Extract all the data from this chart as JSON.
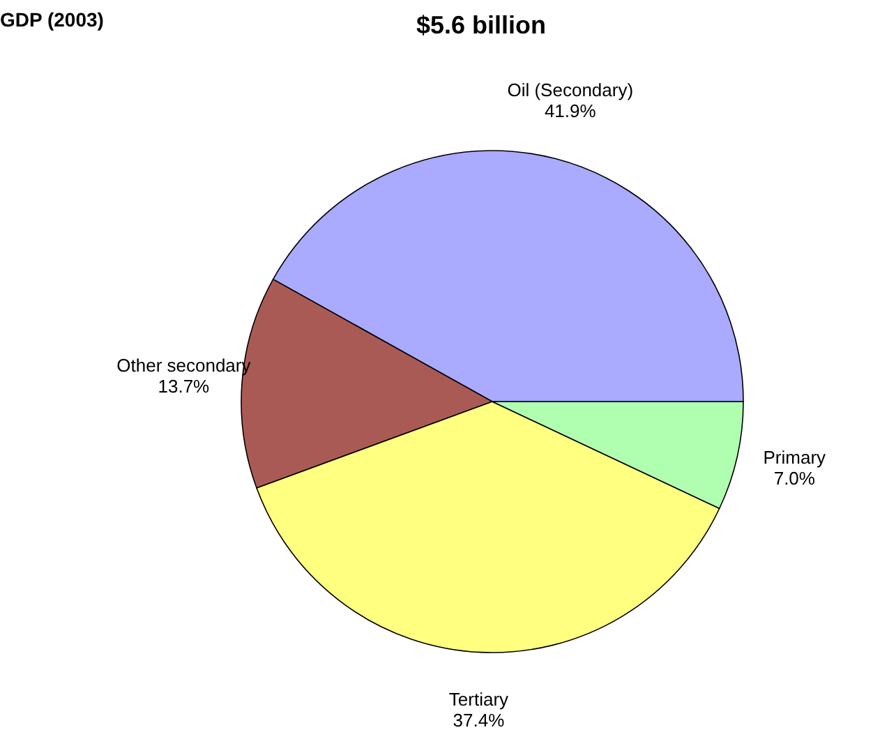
{
  "chart_data": {
    "type": "pie",
    "title": "GDP (2003)",
    "subtitle": "$5.6 billion",
    "categories": [
      "Oil (Secondary)",
      "Other secondary",
      "Tertiary",
      "Primary"
    ],
    "values": [
      41.9,
      13.7,
      37.4,
      7.0
    ],
    "value_labels": [
      "41.9%",
      "13.7%",
      "37.4%",
      "7.0%"
    ],
    "colors": [
      "#aaaaff",
      "#aa5a55",
      "#ffff80",
      "#b0ffb0"
    ]
  }
}
